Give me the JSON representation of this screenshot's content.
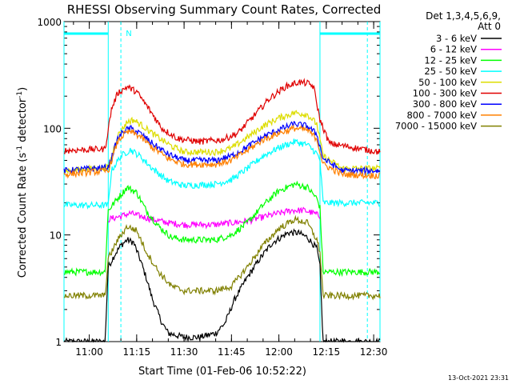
{
  "chart_data": {
    "type": "line",
    "title": "RHESSI Observing Summary Count Rates, Corrected",
    "xlabel": "Start Time (01-Feb-06 10:52:22)",
    "ylabel_main": "Corrected Count Rate (s",
    "ylabel_sup1": "-1",
    "ylabel_mid": " detector",
    "ylabel_sup2": "-1",
    "ylabel_end": ")",
    "y_scale": "log",
    "ylim": [
      1,
      1000
    ],
    "xlim": [
      "10:52",
      "12:32"
    ],
    "xticks": [
      "11:00",
      "11:15",
      "11:30",
      "11:45",
      "12:00",
      "12:15",
      "12:30"
    ],
    "yticks": [
      "1",
      "10",
      "100",
      "1000"
    ],
    "legend_placement": "right",
    "legend_header": [
      "Det 1,3,4,5,6,9,",
      "Att 0"
    ],
    "timestamp": "13-Oct-2021 23:31",
    "night_marker": "N",
    "night_intervals": [
      [
        "10:52",
        "11:06"
      ],
      [
        "12:13",
        "12:32"
      ]
    ],
    "saa_lines": [
      "11:10",
      "12:28"
    ],
    "series": [
      {
        "name": "3 - 6 keV",
        "color": "#000000",
        "values": [
          [
            "10:52",
            1
          ],
          [
            "11:05",
            1
          ],
          [
            "11:06",
            5
          ],
          [
            "11:08",
            6.5
          ],
          [
            "11:10",
            8
          ],
          [
            "11:12",
            9
          ],
          [
            "11:14",
            8.5
          ],
          [
            "11:16",
            6
          ],
          [
            "11:18",
            4
          ],
          [
            "11:20",
            2.5
          ],
          [
            "11:23",
            1.5
          ],
          [
            "11:25",
            1.2
          ],
          [
            "11:30",
            1.1
          ],
          [
            "11:35",
            1.1
          ],
          [
            "11:40",
            1.2
          ],
          [
            "11:43",
            1.5
          ],
          [
            "11:46",
            2.5
          ],
          [
            "11:50",
            4
          ],
          [
            "11:54",
            6
          ],
          [
            "11:58",
            8.5
          ],
          [
            "12:03",
            10.5
          ],
          [
            "12:06",
            10.5
          ],
          [
            "12:09",
            9.5
          ],
          [
            "12:12",
            7.5
          ],
          [
            "12:13",
            5
          ],
          [
            "12:14",
            1
          ],
          [
            "12:32",
            1
          ]
        ]
      },
      {
        "name": "6 - 12 keV",
        "color": "#ff00ff",
        "values": [
          [
            "11:06",
            14
          ],
          [
            "11:10",
            15
          ],
          [
            "11:13",
            16
          ],
          [
            "11:16",
            15
          ],
          [
            "11:20",
            14
          ],
          [
            "11:25",
            13
          ],
          [
            "11:30",
            12.5
          ],
          [
            "11:40",
            12.5
          ],
          [
            "11:50",
            13.5
          ],
          [
            "11:58",
            15.5
          ],
          [
            "12:04",
            17
          ],
          [
            "12:08",
            17
          ],
          [
            "12:11",
            16
          ],
          [
            "12:13",
            15
          ]
        ]
      },
      {
        "name": "12 - 25 keV",
        "color": "#00ff00",
        "values": [
          [
            "10:52",
            4.5
          ],
          [
            "11:05",
            4.5
          ],
          [
            "11:06",
            17
          ],
          [
            "11:09",
            22
          ],
          [
            "11:12",
            28
          ],
          [
            "11:15",
            25
          ],
          [
            "11:18",
            17
          ],
          [
            "11:22",
            12
          ],
          [
            "11:26",
            9.5
          ],
          [
            "11:30",
            9
          ],
          [
            "11:40",
            9
          ],
          [
            "11:45",
            10
          ],
          [
            "11:50",
            13
          ],
          [
            "11:55",
            19
          ],
          [
            "12:00",
            26
          ],
          [
            "12:05",
            30
          ],
          [
            "12:09",
            28
          ],
          [
            "12:12",
            22
          ],
          [
            "12:13",
            18
          ],
          [
            "12:14",
            4.5
          ],
          [
            "12:32",
            4.5
          ]
        ]
      },
      {
        "name": "25 - 50 keV",
        "color": "#00ffff",
        "values": [
          [
            "10:52",
            19
          ],
          [
            "11:06",
            19
          ],
          [
            "11:07",
            40
          ],
          [
            "11:10",
            55
          ],
          [
            "11:13",
            63
          ],
          [
            "11:16",
            55
          ],
          [
            "11:20",
            42
          ],
          [
            "11:25",
            32
          ],
          [
            "11:30",
            29
          ],
          [
            "11:40",
            30
          ],
          [
            "11:45",
            33
          ],
          [
            "11:50",
            42
          ],
          [
            "11:55",
            55
          ],
          [
            "12:00",
            66
          ],
          [
            "12:05",
            75
          ],
          [
            "12:09",
            70
          ],
          [
            "12:12",
            58
          ],
          [
            "12:13",
            50
          ],
          [
            "12:14",
            20
          ],
          [
            "12:32",
            20
          ]
        ]
      },
      {
        "name": "50 - 100 keV",
        "color": "#dddd00",
        "values": [
          [
            "10:52",
            40
          ],
          [
            "11:06",
            43
          ],
          [
            "11:09",
            85
          ],
          [
            "11:12",
            115
          ],
          [
            "11:14",
            120
          ],
          [
            "11:17",
            105
          ],
          [
            "11:21",
            85
          ],
          [
            "11:26",
            68
          ],
          [
            "11:30",
            60
          ],
          [
            "11:40",
            60
          ],
          [
            "11:45",
            65
          ],
          [
            "11:50",
            82
          ],
          [
            "11:55",
            105
          ],
          [
            "12:00",
            125
          ],
          [
            "12:05",
            140
          ],
          [
            "12:09",
            135
          ],
          [
            "12:12",
            110
          ],
          [
            "12:14",
            55
          ],
          [
            "12:20",
            42
          ],
          [
            "12:32",
            42
          ]
        ]
      },
      {
        "name": "100 - 300 keV",
        "color": "#e00000",
        "values": [
          [
            "10:52",
            62
          ],
          [
            "11:05",
            64
          ],
          [
            "11:07",
            150
          ],
          [
            "11:09",
            215
          ],
          [
            "11:12",
            245
          ],
          [
            "11:15",
            220
          ],
          [
            "11:19",
            150
          ],
          [
            "11:23",
            100
          ],
          [
            "11:28",
            80
          ],
          [
            "11:35",
            75
          ],
          [
            "11:42",
            78
          ],
          [
            "11:47",
            90
          ],
          [
            "11:52",
            130
          ],
          [
            "11:57",
            190
          ],
          [
            "12:02",
            245
          ],
          [
            "12:06",
            270
          ],
          [
            "12:09",
            265
          ],
          [
            "12:11",
            245
          ],
          [
            "12:13",
            120
          ],
          [
            "12:16",
            72
          ],
          [
            "12:32",
            60
          ]
        ]
      },
      {
        "name": "300 - 800 keV",
        "color": "#0000ff",
        "values": [
          [
            "10:52",
            40
          ],
          [
            "11:06",
            43
          ],
          [
            "11:09",
            80
          ],
          [
            "11:11",
            95
          ],
          [
            "11:13",
            100
          ],
          [
            "11:16",
            90
          ],
          [
            "11:20",
            72
          ],
          [
            "11:25",
            57
          ],
          [
            "11:30",
            50
          ],
          [
            "11:40",
            50
          ],
          [
            "11:45",
            55
          ],
          [
            "11:50",
            67
          ],
          [
            "11:55",
            83
          ],
          [
            "12:00",
            97
          ],
          [
            "12:05",
            110
          ],
          [
            "12:09",
            105
          ],
          [
            "12:12",
            88
          ],
          [
            "12:14",
            52
          ],
          [
            "12:20",
            40
          ],
          [
            "12:32",
            40
          ]
        ]
      },
      {
        "name": "800 - 7000 keV",
        "color": "#ff8000",
        "values": [
          [
            "10:52",
            37
          ],
          [
            "11:06",
            40
          ],
          [
            "11:09",
            75
          ],
          [
            "11:11",
            88
          ],
          [
            "11:13",
            93
          ],
          [
            "11:16",
            84
          ],
          [
            "11:20",
            66
          ],
          [
            "11:25",
            52
          ],
          [
            "11:30",
            46
          ],
          [
            "11:40",
            46
          ],
          [
            "11:45",
            50
          ],
          [
            "11:50",
            62
          ],
          [
            "11:55",
            78
          ],
          [
            "12:00",
            90
          ],
          [
            "12:05",
            100
          ],
          [
            "12:09",
            96
          ],
          [
            "12:12",
            80
          ],
          [
            "12:14",
            46
          ],
          [
            "12:20",
            37
          ],
          [
            "12:32",
            36
          ]
        ]
      },
      {
        "name": "7000 - 15000 keV",
        "color": "#808000",
        "values": [
          [
            "10:52",
            2.7
          ],
          [
            "11:05",
            2.7
          ],
          [
            "11:06",
            6
          ],
          [
            "11:09",
            9
          ],
          [
            "11:12",
            12
          ],
          [
            "11:15",
            11
          ],
          [
            "11:18",
            7
          ],
          [
            "11:22",
            4.5
          ],
          [
            "11:26",
            3.3
          ],
          [
            "11:30",
            3
          ],
          [
            "11:40",
            3
          ],
          [
            "11:45",
            3.3
          ],
          [
            "11:50",
            5
          ],
          [
            "11:55",
            8
          ],
          [
            "12:00",
            11.5
          ],
          [
            "12:05",
            14
          ],
          [
            "12:09",
            13
          ],
          [
            "12:12",
            9
          ],
          [
            "12:13",
            7
          ],
          [
            "12:14",
            2.7
          ],
          [
            "12:32",
            2.7
          ]
        ]
      }
    ]
  }
}
